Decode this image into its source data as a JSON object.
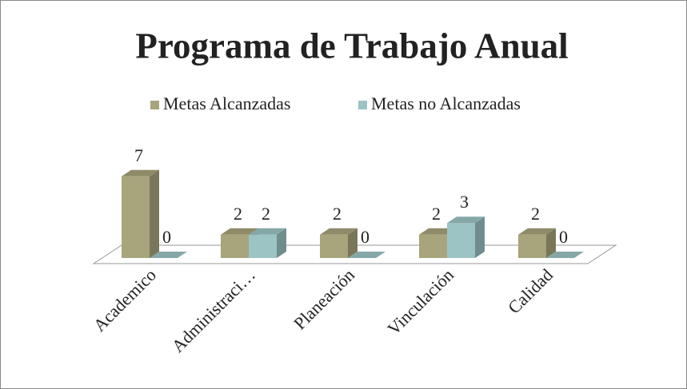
{
  "chart_data": {
    "type": "bar3d",
    "title": "Programa de Trabajo Anual",
    "categories": [
      "Academico",
      "Administraci…",
      "Planeación",
      "Vinculación",
      "Calidad"
    ],
    "series": [
      {
        "name": "Metas Alcanzadas",
        "color": "#a8a47b",
        "values": [
          7,
          2,
          2,
          2,
          2
        ]
      },
      {
        "name": "Metas no Alcanzadas",
        "color": "#9cc4c5",
        "values": [
          0,
          2,
          0,
          3,
          0
        ]
      }
    ],
    "legend": "top"
  }
}
